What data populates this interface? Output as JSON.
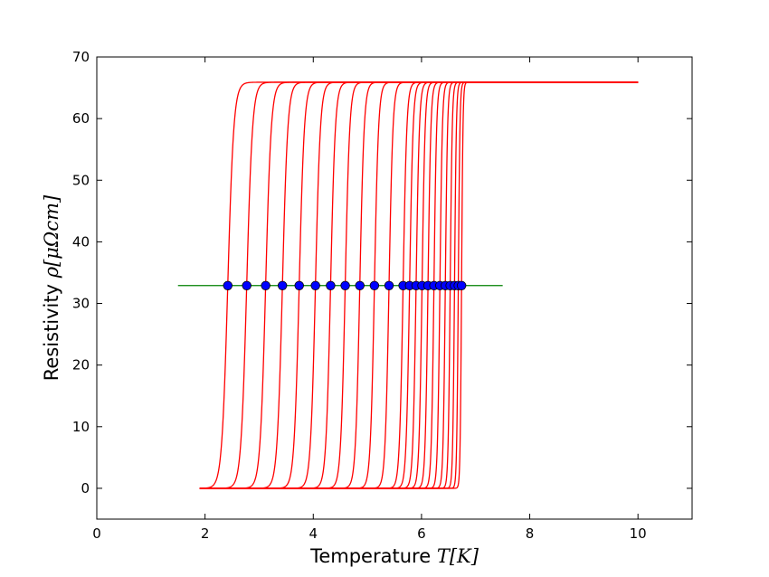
{
  "chart_data": {
    "type": "line",
    "xlabel": "Temperature",
    "xlabel_math": "T[K]",
    "ylabel": "Resistivity",
    "ylabel_math": "ρ[μΩcm]",
    "xlim": [
      0,
      11
    ],
    "ylim": [
      -5,
      70
    ],
    "xticks": [
      0,
      2,
      4,
      6,
      8,
      10
    ],
    "yticks": [
      0,
      10,
      20,
      30,
      40,
      50,
      60,
      70
    ],
    "grid": false,
    "colors": {
      "curves": "#ff0000",
      "threshold": "#008000",
      "markers": "#0000ff",
      "marker_edge": "#000000"
    },
    "rho_normal": 65.9,
    "rho_low": 0,
    "curve_t_start": 1.9,
    "curve_t_end": 10.0,
    "transition_midpoints": [
      2.42,
      2.77,
      3.12,
      3.43,
      3.74,
      4.04,
      4.32,
      4.59,
      4.86,
      5.13,
      5.4,
      5.66,
      5.78,
      5.9,
      6.01,
      6.12,
      6.23,
      6.34,
      6.44,
      6.53,
      6.61,
      6.68,
      6.74
    ],
    "threshold_line": {
      "y": 32.9,
      "x_start": 1.5,
      "x_end": 7.5
    }
  }
}
